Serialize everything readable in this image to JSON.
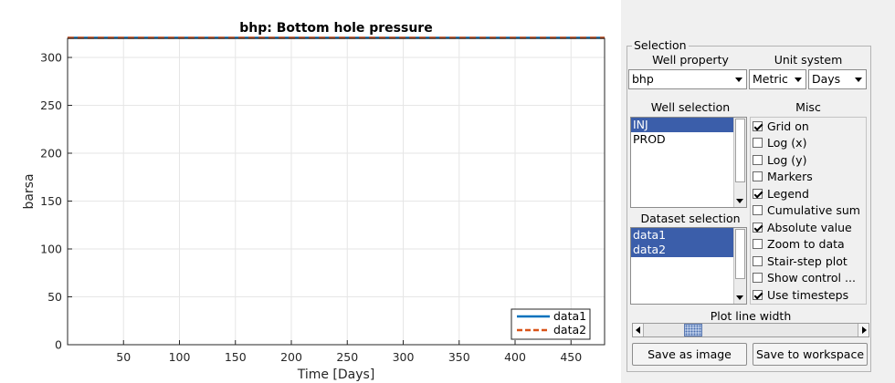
{
  "chart_data": {
    "type": "line",
    "title": "bhp: Bottom hole pressure",
    "xlabel": "Time [Days]",
    "ylabel": "barsa",
    "xlim": [
      0,
      480
    ],
    "ylim": [
      0,
      320
    ],
    "xticks": [
      50,
      100,
      150,
      200,
      250,
      300,
      350,
      400,
      450
    ],
    "yticks": [
      0,
      50,
      100,
      150,
      200,
      250,
      300
    ],
    "grid": true,
    "legend_position": "bottom-right",
    "series": [
      {
        "name": "data1",
        "color": "#0072bd",
        "style": "solid",
        "x": [
          0,
          480
        ],
        "y": [
          320,
          320
        ]
      },
      {
        "name": "data2",
        "color": "#d95319",
        "style": "dashed",
        "x": [
          0,
          480
        ],
        "y": [
          320,
          320
        ]
      }
    ]
  },
  "panel": {
    "selection_title": "Selection",
    "well_property": {
      "label": "Well property",
      "value": "bhp"
    },
    "unit_system": {
      "label": "Unit system",
      "unit_value": "Metric",
      "time_value": "Days"
    },
    "well_selection": {
      "label": "Well selection",
      "items": [
        {
          "label": "INJ",
          "selected": true
        },
        {
          "label": "PROD",
          "selected": false
        }
      ]
    },
    "dataset_selection": {
      "label": "Dataset selection",
      "items": [
        {
          "label": "data1",
          "selected": true
        },
        {
          "label": "data2",
          "selected": true
        }
      ]
    },
    "misc": {
      "label": "Misc",
      "options": [
        {
          "label": "Grid on",
          "checked": true
        },
        {
          "label": "Log (x)",
          "checked": false
        },
        {
          "label": "Log (y)",
          "checked": false
        },
        {
          "label": "Markers",
          "checked": false
        },
        {
          "label": "Legend",
          "checked": true
        },
        {
          "label": "Cumulative sum",
          "checked": false
        },
        {
          "label": "Absolute value",
          "checked": true
        },
        {
          "label": "Zoom to data",
          "checked": false
        },
        {
          "label": "Stair-step plot",
          "checked": false
        },
        {
          "label": "Show control ...",
          "checked": false
        },
        {
          "label": "Use timesteps",
          "checked": true
        }
      ]
    },
    "plot_line_width": {
      "label": "Plot line width",
      "value_fraction": 0.22
    },
    "buttons": {
      "save_image": "Save as image",
      "save_workspace": "Save to workspace"
    }
  }
}
